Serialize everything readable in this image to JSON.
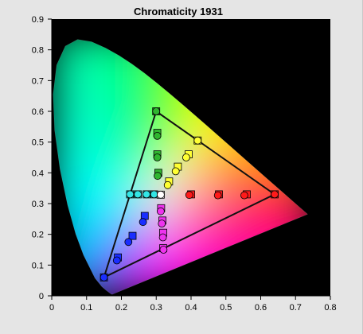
{
  "window": {
    "background": "#e5e5e5"
  },
  "chart_data": {
    "type": "scatter",
    "title": "Chromaticity 1931",
    "xlabel": "",
    "ylabel": "",
    "xlim": [
      0,
      0.8
    ],
    "ylim": [
      0,
      0.9
    ],
    "x_ticks": [
      "0",
      "0.1",
      "0.2",
      "0.3",
      "0.4",
      "0.5",
      "0.6",
      "0.7",
      "0.8"
    ],
    "y_ticks": [
      "0",
      "0.1",
      "0.2",
      "0.3",
      "0.4",
      "0.5",
      "0.6",
      "0.7",
      "0.8",
      "0.9"
    ],
    "plot_background": "#000000",
    "grid": false,
    "gamut_triangle": [
      [
        0.64,
        0.33
      ],
      [
        0.3,
        0.6
      ],
      [
        0.15,
        0.06
      ]
    ],
    "spectral_locus": [
      [
        0.1741,
        0.005
      ],
      [
        0.1738,
        0.0049
      ],
      [
        0.1733,
        0.0048
      ],
      [
        0.1726,
        0.0048
      ],
      [
        0.1714,
        0.0051
      ],
      [
        0.1689,
        0.0069
      ],
      [
        0.1644,
        0.0109
      ],
      [
        0.1566,
        0.0177
      ],
      [
        0.144,
        0.0297
      ],
      [
        0.1241,
        0.0578
      ],
      [
        0.0913,
        0.1327
      ],
      [
        0.0687,
        0.2007
      ],
      [
        0.0454,
        0.295
      ],
      [
        0.0235,
        0.4127
      ],
      [
        0.0082,
        0.5384
      ],
      [
        0.0039,
        0.6548
      ],
      [
        0.0139,
        0.7502
      ],
      [
        0.0389,
        0.812
      ],
      [
        0.0743,
        0.8338
      ],
      [
        0.1142,
        0.8262
      ],
      [
        0.1547,
        0.8059
      ],
      [
        0.1929,
        0.7816
      ],
      [
        0.2296,
        0.7543
      ],
      [
        0.2658,
        0.7243
      ],
      [
        0.3016,
        0.6923
      ],
      [
        0.3373,
        0.6589
      ],
      [
        0.3731,
        0.6245
      ],
      [
        0.4087,
        0.5896
      ],
      [
        0.4441,
        0.5547
      ],
      [
        0.4788,
        0.5202
      ],
      [
        0.5125,
        0.4866
      ],
      [
        0.5448,
        0.4544
      ],
      [
        0.5752,
        0.4242
      ],
      [
        0.6029,
        0.3965
      ],
      [
        0.627,
        0.3725
      ],
      [
        0.6482,
        0.3514
      ],
      [
        0.6658,
        0.334
      ],
      [
        0.6801,
        0.3197
      ],
      [
        0.6915,
        0.3083
      ],
      [
        0.7006,
        0.2993
      ],
      [
        0.7079,
        0.292
      ],
      [
        0.714,
        0.2859
      ],
      [
        0.719,
        0.2809
      ],
      [
        0.723,
        0.277
      ],
      [
        0.726,
        0.274
      ],
      [
        0.7283,
        0.2717
      ],
      [
        0.73,
        0.27
      ],
      [
        0.732,
        0.268
      ],
      [
        0.7347,
        0.2653
      ]
    ],
    "series": [
      {
        "color": "#ff1a1a",
        "squares": [
          [
            0.4,
            0.33
          ],
          [
            0.48,
            0.33
          ],
          [
            0.56,
            0.33
          ],
          [
            0.64,
            0.33
          ]
        ],
        "circles": [
          [
            0.395,
            0.328
          ],
          [
            0.477,
            0.327
          ],
          [
            0.553,
            0.327
          ],
          [
            0.64,
            0.33
          ]
        ]
      },
      {
        "color": "#2fb52f",
        "squares": [
          [
            0.3,
            0.6
          ],
          [
            0.303,
            0.53
          ],
          [
            0.303,
            0.46
          ],
          [
            0.306,
            0.4
          ]
        ],
        "circles": [
          [
            0.3,
            0.6
          ],
          [
            0.303,
            0.52
          ],
          [
            0.303,
            0.45
          ],
          [
            0.304,
            0.39
          ]
        ]
      },
      {
        "color": "#1a2dff",
        "squares": [
          [
            0.15,
            0.06
          ],
          [
            0.19,
            0.125
          ],
          [
            0.232,
            0.195
          ],
          [
            0.267,
            0.26
          ]
        ],
        "circles": [
          [
            0.15,
            0.06
          ],
          [
            0.187,
            0.115
          ],
          [
            0.22,
            0.175
          ],
          [
            0.262,
            0.24
          ]
        ]
      },
      {
        "color": "#ffff33",
        "squares": [
          [
            0.419,
            0.505
          ],
          [
            0.393,
            0.46
          ],
          [
            0.362,
            0.42
          ],
          [
            0.337,
            0.372
          ]
        ],
        "circles": [
          [
            0.419,
            0.505
          ],
          [
            0.386,
            0.45
          ],
          [
            0.356,
            0.405
          ],
          [
            0.333,
            0.36
          ]
        ]
      },
      {
        "color": "#33e5e5",
        "squares": [
          [
            0.225,
            0.33
          ],
          [
            0.247,
            0.33
          ],
          [
            0.272,
            0.33
          ],
          [
            0.294,
            0.33
          ]
        ],
        "circles": [
          [
            0.225,
            0.33
          ],
          [
            0.247,
            0.33
          ],
          [
            0.272,
            0.33
          ],
          [
            0.294,
            0.33
          ]
        ]
      },
      {
        "color": "#ee33ee",
        "squares": [
          [
            0.32,
            0.155
          ],
          [
            0.32,
            0.205
          ],
          [
            0.318,
            0.245
          ],
          [
            0.314,
            0.285
          ]
        ],
        "circles": [
          [
            0.321,
            0.15
          ],
          [
            0.319,
            0.19
          ],
          [
            0.316,
            0.235
          ],
          [
            0.313,
            0.275
          ]
        ]
      },
      {
        "color": "#ffffff",
        "squares": [
          [
            0.313,
            0.329
          ]
        ],
        "circles": [
          [
            0.313,
            0.329
          ]
        ]
      }
    ]
  }
}
